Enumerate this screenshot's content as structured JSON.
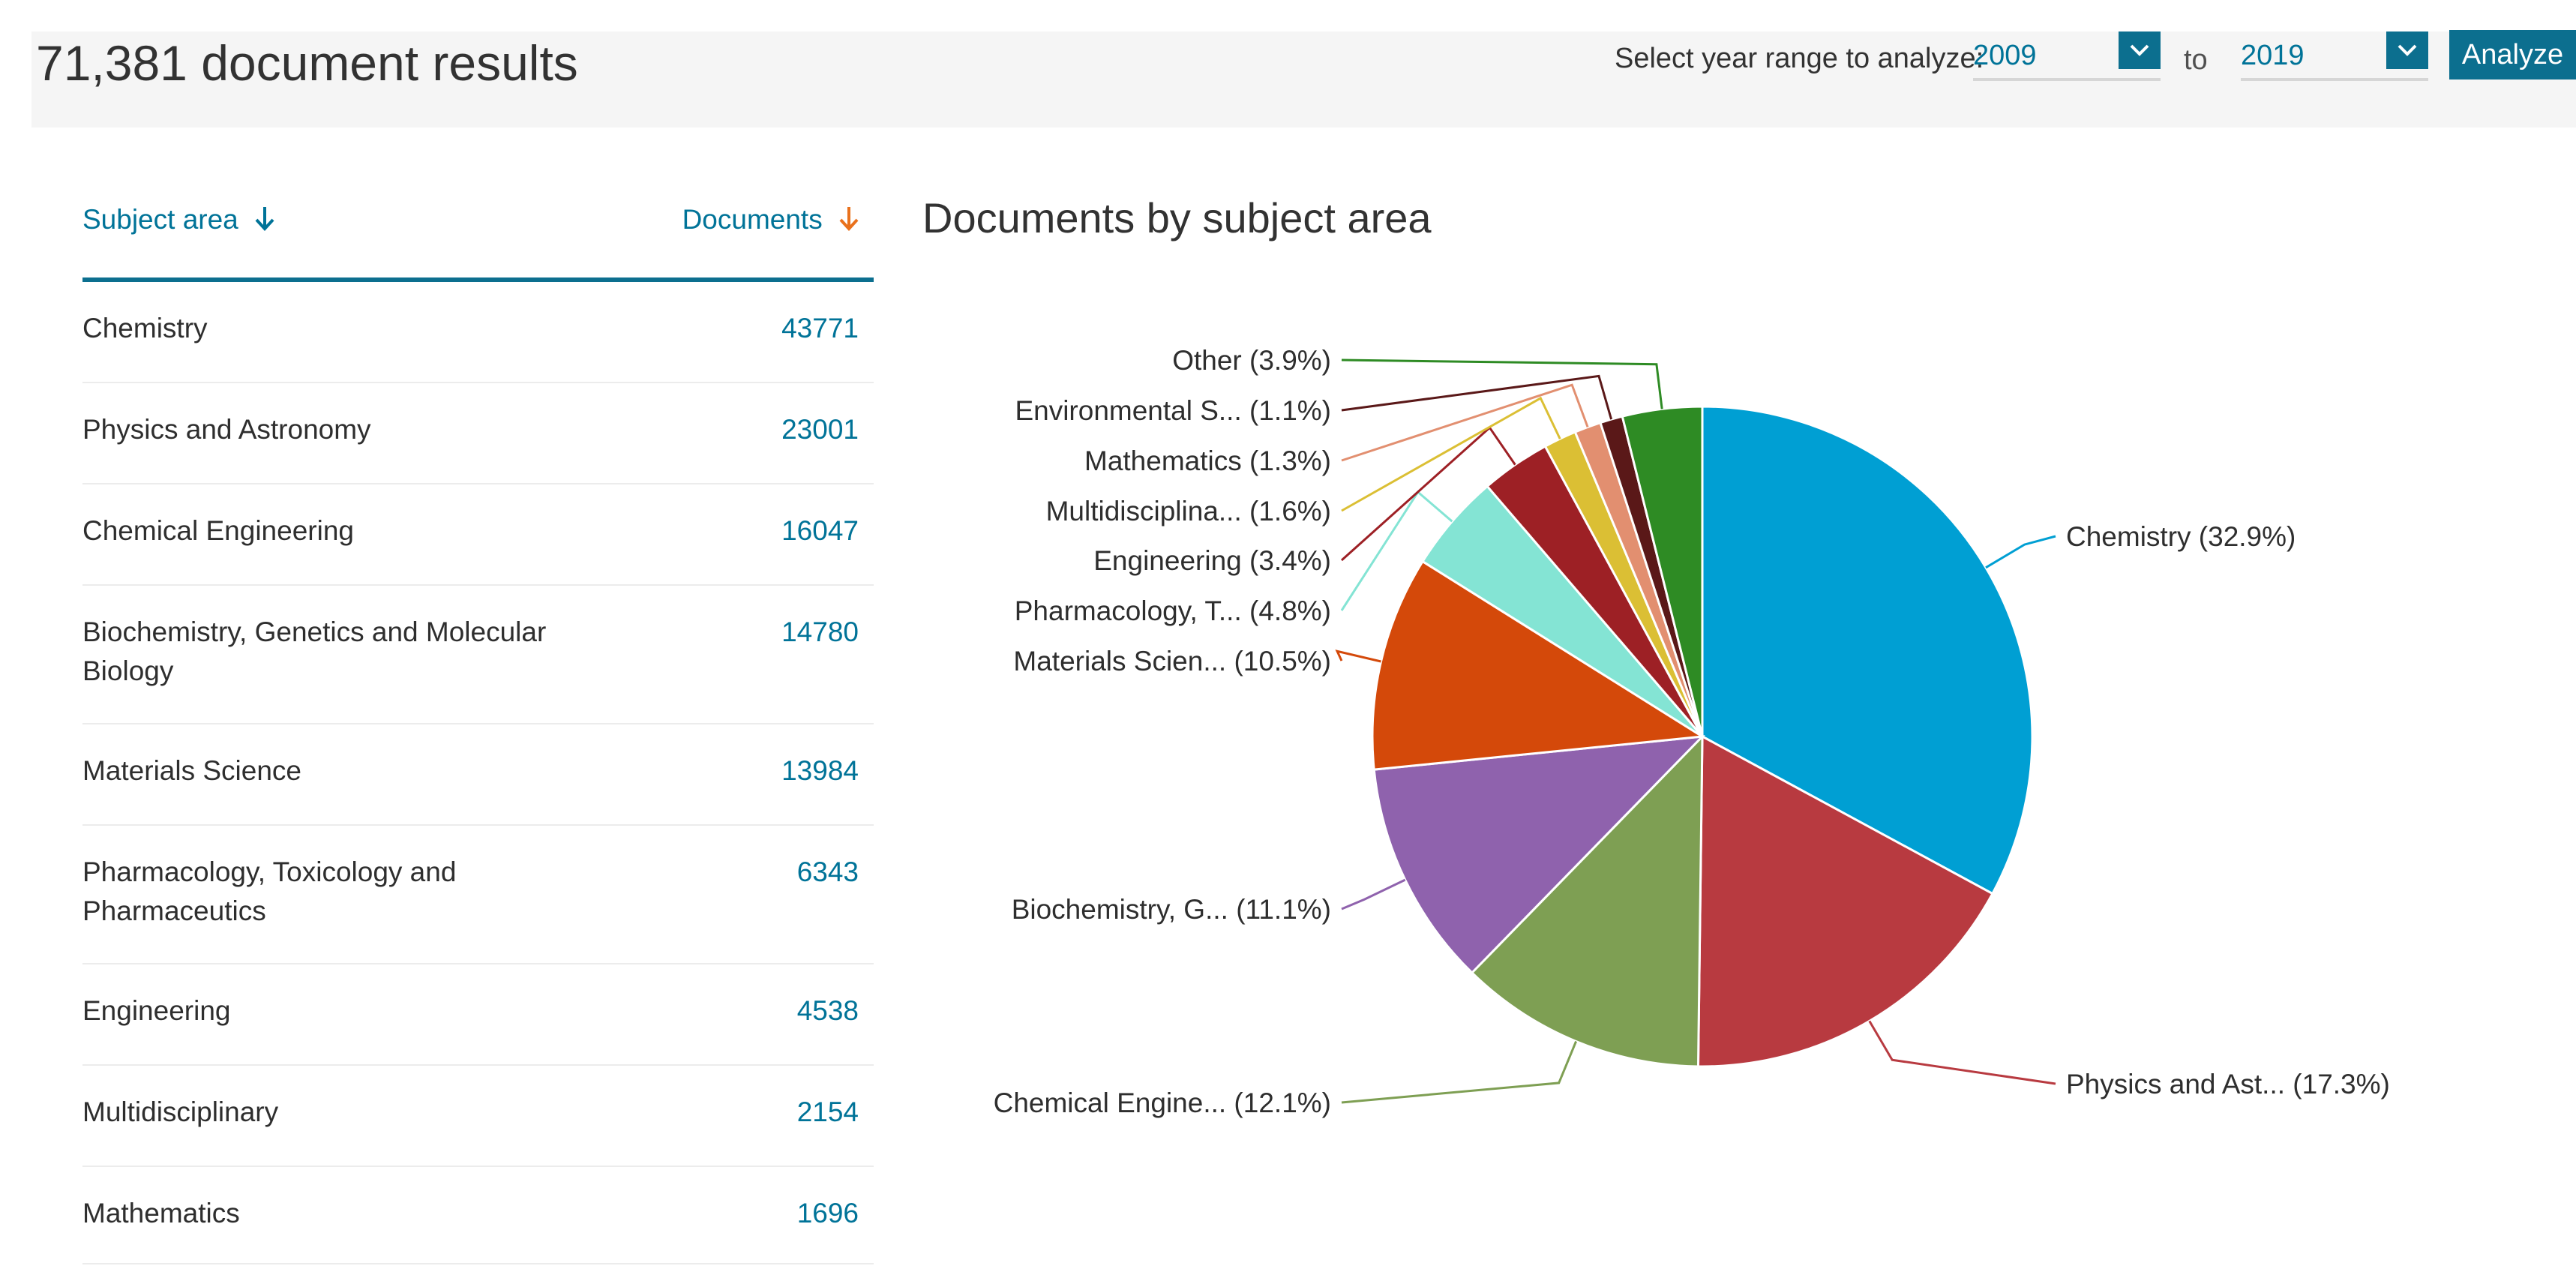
{
  "header": {
    "results_count": "71,381 document results",
    "year_range_label": "Select year range to analyze:",
    "year_from": "2009",
    "to_label": "to",
    "year_to": "2019",
    "analyze_label": "Analyze"
  },
  "table": {
    "col_subject": "Subject area",
    "col_documents": "Documents",
    "rows": [
      {
        "subject": "Chemistry",
        "documents": "43771"
      },
      {
        "subject": "Physics and Astronomy",
        "documents": "23001"
      },
      {
        "subject": "Chemical Engineering",
        "documents": "16047"
      },
      {
        "subject": "Biochemistry, Genetics and Molecular Biology",
        "documents": "14780"
      },
      {
        "subject": "Materials Science",
        "documents": "13984"
      },
      {
        "subject": "Pharmacology, Toxicology and Pharmaceutics",
        "documents": "6343"
      },
      {
        "subject": "Engineering",
        "documents": "4538"
      },
      {
        "subject": "Multidisciplinary",
        "documents": "2154"
      },
      {
        "subject": "Mathematics",
        "documents": "1696"
      }
    ]
  },
  "colors": {
    "accent": "#007398",
    "header_rule": "#0c6f8f",
    "sort_arrow_docs": "#e9711c"
  },
  "icons": {
    "sort_subject": "arrow-down-icon",
    "sort_documents": "arrow-down-icon",
    "select": "chevron-down-icon"
  },
  "chart_data": {
    "type": "pie",
    "title": "Documents by subject area",
    "slices": [
      {
        "label": "Chemistry (32.9%)",
        "value": 32.9,
        "color": "#009fd3"
      },
      {
        "label": "Physics and Ast... (17.3%)",
        "value": 17.3,
        "color": "#b83a40"
      },
      {
        "label": "Chemical Engine... (12.1%)",
        "value": 12.1,
        "color": "#7e9f53"
      },
      {
        "label": "Biochemistry, G... (11.1%)",
        "value": 11.1,
        "color": "#8f62ad"
      },
      {
        "label": "Materials Scien... (10.5%)",
        "value": 10.5,
        "color": "#d4490a"
      },
      {
        "label": "Pharmacology, T... (4.8%)",
        "value": 4.8,
        "color": "#84e4d4"
      },
      {
        "label": "Engineering (3.4%)",
        "value": 3.4,
        "color": "#9d2025"
      },
      {
        "label": "Multidisciplina... (1.6%)",
        "value": 1.6,
        "color": "#dbbf34"
      },
      {
        "label": "Mathematics (1.3%)",
        "value": 1.3,
        "color": "#e28f70"
      },
      {
        "label": "Environmental S... (1.1%)",
        "value": 1.1,
        "color": "#5a1818"
      },
      {
        "label": "Other (3.9%)",
        "value": 3.9,
        "color": "#2e8b24"
      }
    ]
  }
}
